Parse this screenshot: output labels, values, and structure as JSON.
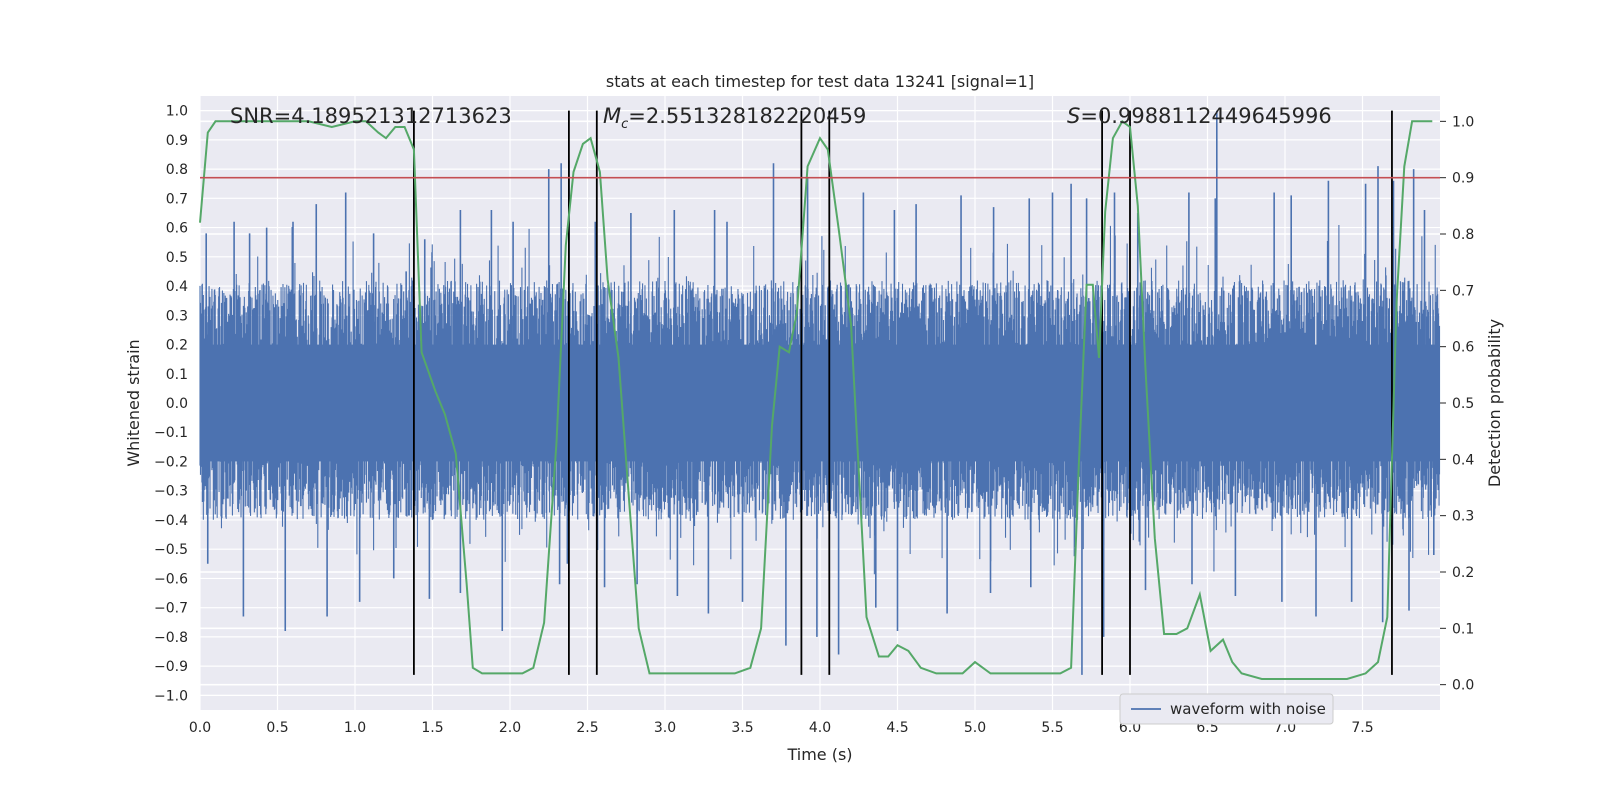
{
  "chart_data": {
    "type": "line",
    "title": "stats at each timestep for test data 13241 [signal=1]",
    "xlabel": "Time (s)",
    "ylabel": "Whitened strain",
    "y2label": "Detection probability",
    "xlim": [
      0.0,
      8.0
    ],
    "ylim": [
      -1.05,
      1.05
    ],
    "y2lim": [
      -0.045,
      1.045
    ],
    "x_ticks": [
      "0.0",
      "0.5",
      "1.0",
      "1.5",
      "2.0",
      "2.5",
      "3.0",
      "3.5",
      "4.0",
      "4.5",
      "5.0",
      "5.5",
      "6.0",
      "6.5",
      "7.0",
      "7.5"
    ],
    "y_ticks": [
      "1.0",
      "0.9",
      "0.8",
      "0.7",
      "0.6",
      "0.5",
      "0.4",
      "0.3",
      "0.2",
      "0.1",
      "0.0",
      "−0.1",
      "−0.2",
      "−0.3",
      "−0.4",
      "−0.5",
      "−0.6",
      "−0.7",
      "−0.8",
      "−0.9",
      "−1.0"
    ],
    "y2_ticks": [
      "1.0",
      "0.9",
      "0.8",
      "0.7",
      "0.6",
      "0.5",
      "0.4",
      "0.3",
      "0.2",
      "0.1",
      "0.0"
    ],
    "grid": true,
    "legend_location": "lower right",
    "annotations": {
      "snr": "SNR=4.189521312713623",
      "mc_symbol": "M",
      "mc_sub": "c",
      "mc_value": "=2.551328182220459",
      "s_symbol": "S",
      "s_value": "=0.9988112449645996"
    },
    "series": [
      {
        "name": "waveform with noise",
        "role": "whitened strain (noisy waveform)",
        "color": "#4c72b0",
        "envelope": {
          "typical_upper": 0.42,
          "typical_lower": -0.4,
          "max": 1.0,
          "min": -0.93
        },
        "peaks": [
          [
            0.04,
            0.58
          ],
          [
            0.22,
            0.62
          ],
          [
            0.32,
            0.58
          ],
          [
            0.43,
            0.6
          ],
          [
            0.6,
            0.62
          ],
          [
            0.75,
            0.68
          ],
          [
            0.94,
            0.72
          ],
          [
            1.12,
            0.58
          ],
          [
            1.33,
            0.45
          ],
          [
            1.45,
            0.56
          ],
          [
            1.68,
            0.66
          ],
          [
            1.88,
            0.66
          ],
          [
            2.02,
            0.62
          ],
          [
            2.25,
            0.8
          ],
          [
            2.33,
            0.82
          ],
          [
            2.38,
            0.83
          ],
          [
            2.55,
            0.62
          ],
          [
            2.78,
            0.65
          ],
          [
            3.06,
            0.66
          ],
          [
            3.32,
            0.66
          ],
          [
            3.4,
            0.62
          ],
          [
            3.7,
            0.82
          ],
          [
            3.92,
            0.77
          ],
          [
            4.06,
            0.8
          ],
          [
            4.28,
            0.72
          ],
          [
            4.48,
            0.66
          ],
          [
            4.62,
            0.68
          ],
          [
            4.91,
            0.71
          ],
          [
            5.12,
            0.67
          ],
          [
            5.35,
            0.7
          ],
          [
            5.5,
            0.72
          ],
          [
            5.62,
            0.75
          ],
          [
            5.72,
            0.7
          ],
          [
            5.9,
            0.72
          ],
          [
            6.05,
            0.65
          ],
          [
            6.38,
            0.72
          ],
          [
            6.55,
            0.7
          ],
          [
            6.93,
            0.72
          ],
          [
            7.04,
            0.71
          ],
          [
            7.28,
            0.76
          ],
          [
            7.52,
            0.75
          ],
          [
            7.6,
            0.81
          ],
          [
            7.7,
            0.76
          ],
          [
            7.83,
            0.8
          ],
          [
            7.9,
            0.66
          ],
          [
            6.56,
            1.0
          ]
        ],
        "troughs": [
          [
            0.05,
            -0.55
          ],
          [
            0.28,
            -0.73
          ],
          [
            0.55,
            -0.78
          ],
          [
            0.82,
            -0.73
          ],
          [
            1.03,
            -0.68
          ],
          [
            1.25,
            -0.6
          ],
          [
            1.48,
            -0.67
          ],
          [
            1.68,
            -0.65
          ],
          [
            1.95,
            -0.78
          ],
          [
            2.32,
            -0.62
          ],
          [
            2.37,
            -0.55
          ],
          [
            2.61,
            -0.63
          ],
          [
            2.82,
            -0.62
          ],
          [
            3.08,
            -0.66
          ],
          [
            3.28,
            -0.72
          ],
          [
            3.5,
            -0.68
          ],
          [
            3.78,
            -0.83
          ],
          [
            3.98,
            -0.8
          ],
          [
            4.12,
            -0.86
          ],
          [
            4.36,
            -0.7
          ],
          [
            4.5,
            -0.78
          ],
          [
            4.82,
            -0.72
          ],
          [
            5.1,
            -0.65
          ],
          [
            5.36,
            -0.63
          ],
          [
            5.69,
            -0.93
          ],
          [
            5.83,
            -0.8
          ],
          [
            6.1,
            -0.64
          ],
          [
            6.4,
            -0.62
          ],
          [
            6.68,
            -0.66
          ],
          [
            6.98,
            -0.68
          ],
          [
            7.2,
            -0.73
          ],
          [
            7.43,
            -0.68
          ],
          [
            7.63,
            -0.75
          ],
          [
            7.8,
            -0.71
          ],
          [
            7.96,
            -0.52
          ]
        ]
      },
      {
        "role": "detection probability (right axis)",
        "color": "#55a868",
        "points": [
          [
            0.0,
            0.82
          ],
          [
            0.05,
            0.98
          ],
          [
            0.1,
            1.0
          ],
          [
            0.3,
            1.0
          ],
          [
            0.5,
            1.0
          ],
          [
            0.7,
            1.0
          ],
          [
            0.85,
            0.99
          ],
          [
            1.0,
            1.0
          ],
          [
            1.07,
            1.0
          ],
          [
            1.15,
            0.98
          ],
          [
            1.2,
            0.97
          ],
          [
            1.26,
            0.99
          ],
          [
            1.32,
            0.99
          ],
          [
            1.38,
            0.95
          ],
          [
            1.43,
            0.59
          ],
          [
            1.52,
            0.52
          ],
          [
            1.58,
            0.48
          ],
          [
            1.65,
            0.41
          ],
          [
            1.72,
            0.18
          ],
          [
            1.76,
            0.03
          ],
          [
            1.82,
            0.02
          ],
          [
            1.88,
            0.02
          ],
          [
            2.0,
            0.02
          ],
          [
            2.08,
            0.02
          ],
          [
            2.15,
            0.03
          ],
          [
            2.22,
            0.11
          ],
          [
            2.3,
            0.43
          ],
          [
            2.36,
            0.78
          ],
          [
            2.41,
            0.91
          ],
          [
            2.47,
            0.96
          ],
          [
            2.52,
            0.97
          ],
          [
            2.58,
            0.91
          ],
          [
            2.63,
            0.72
          ],
          [
            2.7,
            0.58
          ],
          [
            2.77,
            0.32
          ],
          [
            2.83,
            0.1
          ],
          [
            2.9,
            0.02
          ],
          [
            2.95,
            0.02
          ],
          [
            3.1,
            0.02
          ],
          [
            3.3,
            0.02
          ],
          [
            3.45,
            0.02
          ],
          [
            3.55,
            0.03
          ],
          [
            3.62,
            0.1
          ],
          [
            3.69,
            0.46
          ],
          [
            3.74,
            0.6
          ],
          [
            3.8,
            0.59
          ],
          [
            3.85,
            0.66
          ],
          [
            3.92,
            0.92
          ],
          [
            4.0,
            0.97
          ],
          [
            4.05,
            0.95
          ],
          [
            4.12,
            0.81
          ],
          [
            4.2,
            0.64
          ],
          [
            4.3,
            0.12
          ],
          [
            4.38,
            0.05
          ],
          [
            4.44,
            0.05
          ],
          [
            4.5,
            0.07
          ],
          [
            4.57,
            0.06
          ],
          [
            4.65,
            0.03
          ],
          [
            4.75,
            0.02
          ],
          [
            4.85,
            0.02
          ],
          [
            4.92,
            0.02
          ],
          [
            5.0,
            0.04
          ],
          [
            5.1,
            0.02
          ],
          [
            5.2,
            0.02
          ],
          [
            5.3,
            0.02
          ],
          [
            5.4,
            0.02
          ],
          [
            5.55,
            0.02
          ],
          [
            5.62,
            0.03
          ],
          [
            5.67,
            0.39
          ],
          [
            5.72,
            0.71
          ],
          [
            5.76,
            0.71
          ],
          [
            5.8,
            0.58
          ],
          [
            5.84,
            0.84
          ],
          [
            5.89,
            0.97
          ],
          [
            5.95,
            1.0
          ],
          [
            6.0,
            0.99
          ],
          [
            6.05,
            0.85
          ],
          [
            6.1,
            0.56
          ],
          [
            6.16,
            0.26
          ],
          [
            6.22,
            0.09
          ],
          [
            6.3,
            0.09
          ],
          [
            6.37,
            0.1
          ],
          [
            6.45,
            0.16
          ],
          [
            6.52,
            0.06
          ],
          [
            6.6,
            0.08
          ],
          [
            6.66,
            0.04
          ],
          [
            6.72,
            0.02
          ],
          [
            6.85,
            0.01
          ],
          [
            7.0,
            0.01
          ],
          [
            7.2,
            0.01
          ],
          [
            7.4,
            0.01
          ],
          [
            7.52,
            0.02
          ],
          [
            7.6,
            0.04
          ],
          [
            7.66,
            0.12
          ],
          [
            7.72,
            0.68
          ],
          [
            7.77,
            0.92
          ],
          [
            7.82,
            1.0
          ],
          [
            7.87,
            1.0
          ],
          [
            7.95,
            1.0
          ]
        ]
      }
    ],
    "threshold_line": {
      "y2": 0.9,
      "color": "#c44e52"
    },
    "vertical_lines": [
      1.38,
      2.38,
      2.56,
      3.88,
      4.06,
      5.82,
      6.0,
      7.69
    ],
    "vertical_line_y_range": [
      -0.93,
      1.0
    ]
  }
}
